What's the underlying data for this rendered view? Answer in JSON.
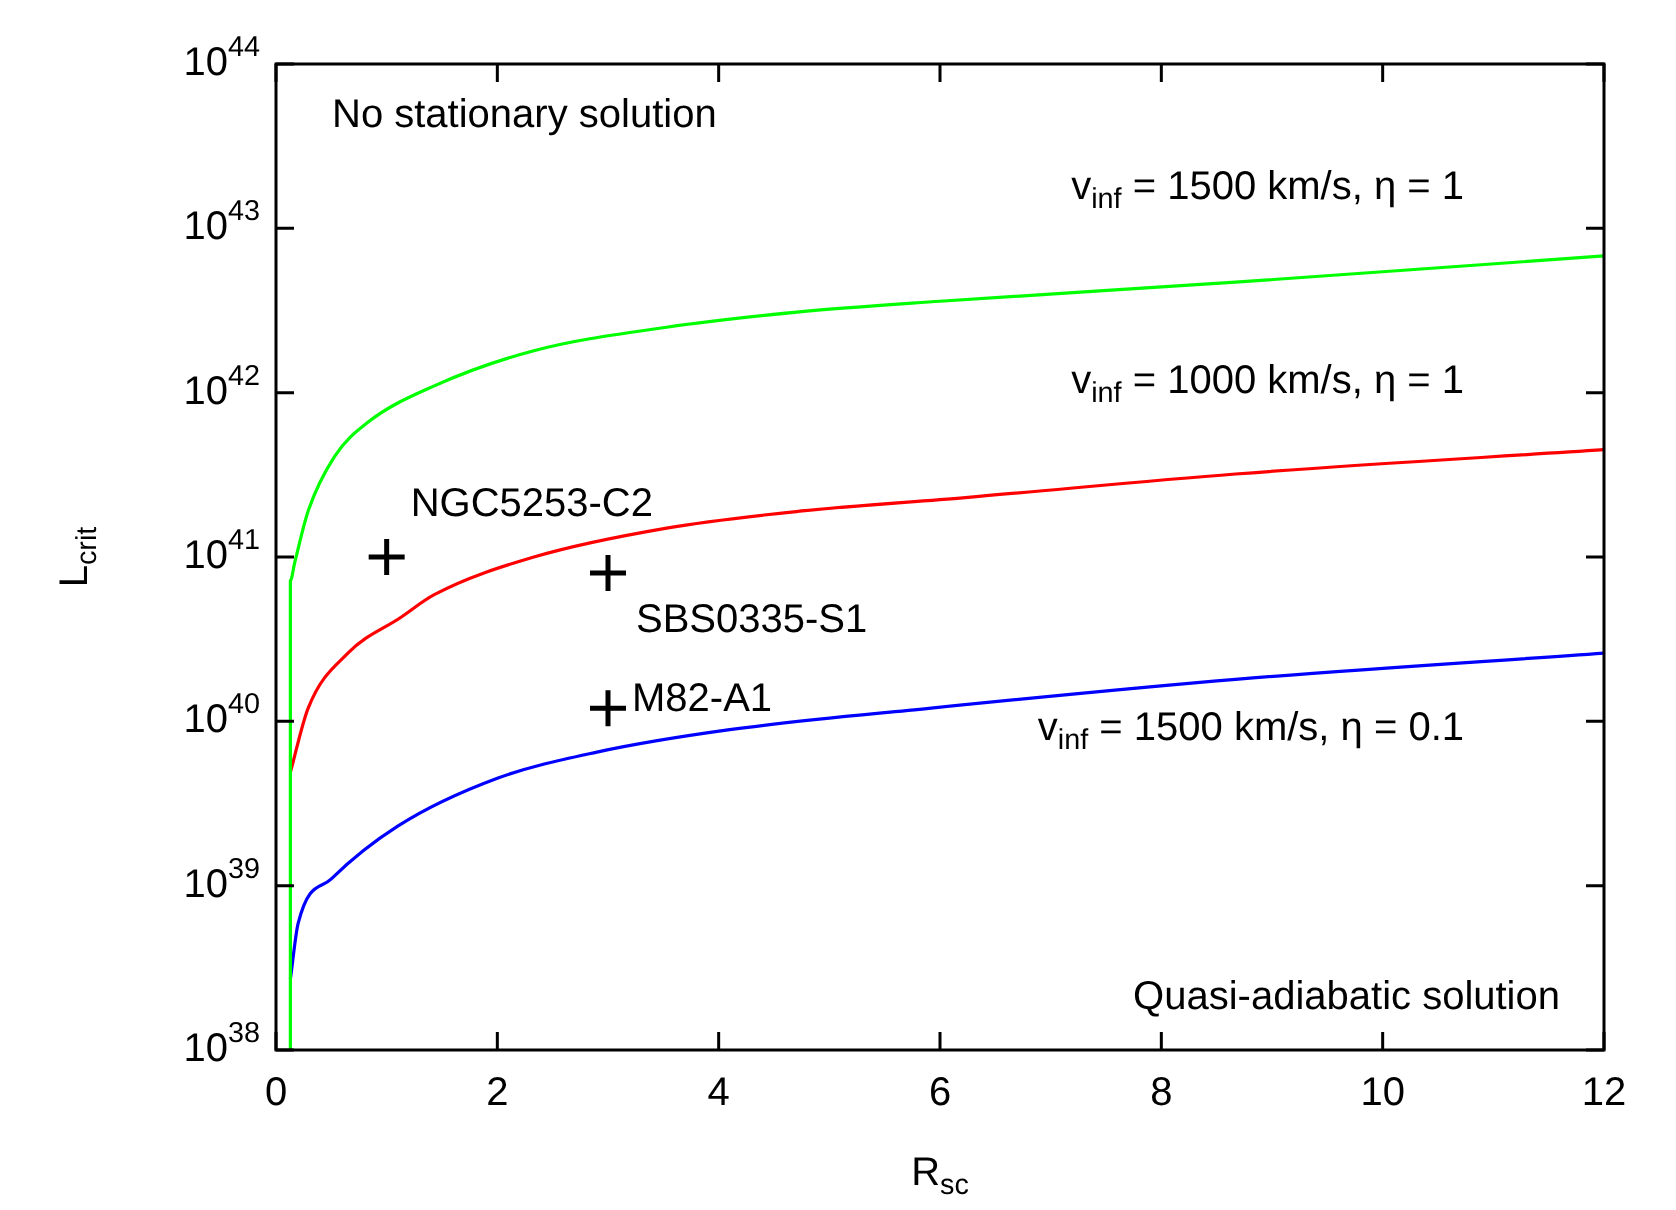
{
  "chart_data": {
    "type": "line",
    "xlabel": "R$_{sc}$",
    "ylabel": "L$_{crit}$",
    "log": "y",
    "grid": false,
    "legend": false,
    "xlim": [
      0,
      12
    ],
    "xticks": [
      0,
      2,
      4,
      6,
      8,
      10,
      12
    ],
    "ylim": [
      1e+38,
      1e+44
    ],
    "yticks": [
      {
        "value": 1e+38,
        "label": "10$^{38}$"
      },
      {
        "value": 1e+39,
        "label": "10$^{39}$"
      },
      {
        "value": 1e+40,
        "label": "10$^{40}$"
      },
      {
        "value": 1e+41,
        "label": "10$^{41}$"
      },
      {
        "value": 1e+42,
        "label": "10$^{42}$"
      },
      {
        "value": 1e+43,
        "label": "10$^{43}$"
      },
      {
        "value": 1e+44,
        "label": "10$^{44}$"
      }
    ],
    "series": [
      {
        "type": "line",
        "name": "v$_{inf}$ = 1500 km/s, η = 1",
        "color": "#00ff00",
        "marker": "none",
        "line_style": "solid",
        "x": [
          0.13,
          0.13,
          0.17,
          0.29,
          0.53,
          0.83,
          1.43,
          2.33,
          3.53,
          4.73,
          6.0,
          8.67,
          12
        ],
        "values": [
          1e+38,
          7.2e+40,
          9.3e+40,
          1.9e+41,
          4.1e+41,
          6.6e+41,
          1.1e+42,
          1.8e+42,
          2.5e+42,
          3.1e+42,
          3.6e+42,
          4.7e+42,
          6.8e+42
        ]
      },
      {
        "type": "line",
        "name": "v$_{inf}$ = 1000 km/s, η = 1",
        "color": "#ff0000",
        "marker": "none",
        "line_style": "solid",
        "x": [
          0.13,
          0.29,
          0.65,
          1.13,
          1.43,
          2.33,
          3.53,
          4.73,
          6.23,
          8.67,
          12
        ],
        "values": [
          4.9e+39,
          1.2e+40,
          2.6e+40,
          4.3e+40,
          5.9e+40,
          1e+41,
          1.5e+41,
          1.9e+41,
          2.3e+41,
          3.2e+41,
          4.5e+41
        ]
      },
      {
        "type": "line",
        "name": "v$_{inf}$ = 1500 km/s, η = 0.1",
        "color": "#0000ff",
        "marker": "none",
        "line_style": "solid",
        "x": [
          0.13,
          0.2,
          0.5,
          1.1,
          2.0,
          2.9,
          4.1,
          5.9,
          8.67,
          12
        ],
        "values": [
          2.7e+38,
          5.9e+38,
          1.1e+39,
          2.3e+39,
          4.5e+39,
          6.5e+39,
          8.9e+39,
          1.2e+40,
          1.8e+40,
          2.6e+40
        ]
      },
      {
        "type": "scatter",
        "name": "NGC5253-C2",
        "color": "#000000",
        "marker": "cross",
        "x": [
          1
        ],
        "values": [
          1e+41
        ]
      },
      {
        "type": "scatter",
        "name": "SBS0335-S1",
        "color": "#000000",
        "marker": "cross",
        "x": [
          3
        ],
        "values": [
          8e+40
        ]
      },
      {
        "type": "scatter",
        "name": "M82-A1",
        "color": "#000000",
        "marker": "cross",
        "x": [
          3
        ],
        "values": [
          1.2e+40
        ]
      }
    ],
    "annotations": [
      "No stationary solution",
      "Quasi-adiabatic solution"
    ]
  }
}
